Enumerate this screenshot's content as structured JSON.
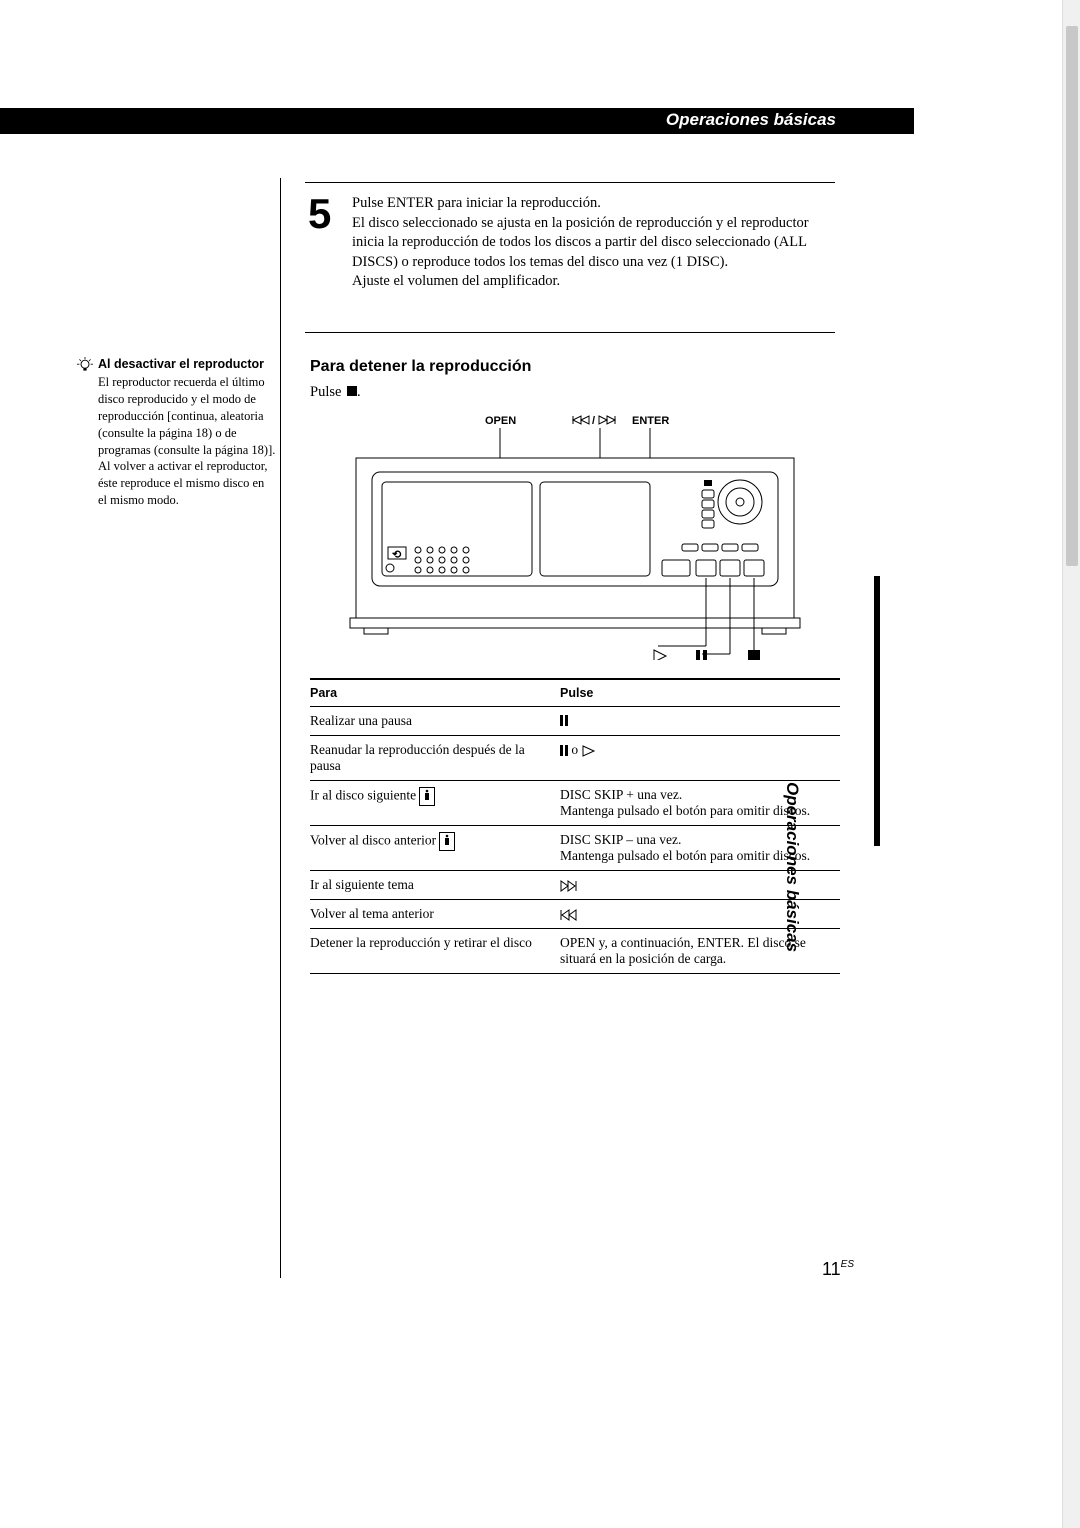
{
  "header": {
    "title": "Operaciones básicas"
  },
  "step5": {
    "num": "5",
    "text": "Pulse ENTER para iniciar la reproducción.\nEl disco seleccionado se ajusta en la posición de reproducción y el reproductor inicia la reproducción de todos los discos a partir del disco seleccionado (ALL DISCS) o reproduce todos los temas del disco una vez (1 DISC).\nAjuste el volumen del amplificador."
  },
  "tip": {
    "title": "Al desactivar el reproductor",
    "body": "El reproductor recuerda el último disco reproducido y el modo de reproducción [continua, aleatoria (consulte la página 18) o de programas (consulte la página 18)]. Al volver a activar el reproductor, éste reproduce el mismo disco en el mismo modo."
  },
  "section": {
    "heading": "Para detener la reproducción",
    "text_prefix": "Pulse "
  },
  "diagram_labels": {
    "open": "OPEN",
    "skip": "⏮/⏭",
    "enter": "ENTER",
    "play": "▷",
    "pause": "❚❚",
    "stop": "■"
  },
  "side_label": "Operaciones básicas",
  "table": {
    "h1": "Para",
    "h2": "Pulse",
    "rows": [
      {
        "para": "Realizar una pausa",
        "pulse_type": "pause"
      },
      {
        "para": "Reanudar la reproducción después de la pausa",
        "pulse_type": "pause_or_play"
      },
      {
        "para": "Ir al disco siguiente",
        "pulse_type": "disc_plus",
        "pulse_text": "DISC SKIP + una vez.\nMantenga pulsado el botón para omitir discos.",
        "remote": true
      },
      {
        "para": "Volver al disco anterior",
        "pulse_type": "disc_minus",
        "pulse_text": "DISC SKIP – una vez.\nMantenga pulsado el botón para omitir discos.",
        "remote": true
      },
      {
        "para": "Ir al siguiente tema",
        "pulse_type": "next"
      },
      {
        "para": "Volver al tema anterior",
        "pulse_type": "prev"
      },
      {
        "para": "Detener la reproducción y retirar el disco",
        "pulse_type": "text",
        "pulse_text": "OPEN y, a continuación, ENTER. El disco se situará en la posición de carga."
      }
    ]
  },
  "page_number": "11",
  "page_lang": "ES",
  "colors": {
    "black": "#000000",
    "white": "#ffffff",
    "scrollbar_track": "#f0f0f0",
    "scrollbar_thumb": "#c8c8c8"
  }
}
